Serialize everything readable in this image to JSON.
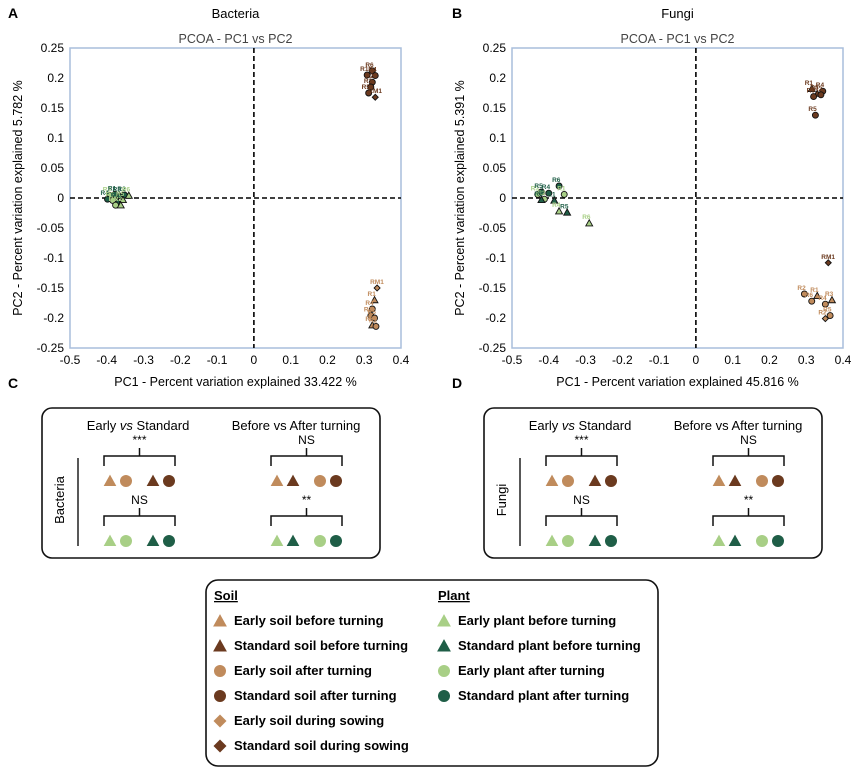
{
  "colors": {
    "early_soil": "#c08b5c",
    "standard_soil": "#6b3a1f",
    "early_plant": "#a8cf86",
    "standard_plant": "#1f5e47",
    "frame": "#a9bedc"
  },
  "chart_data": [
    {
      "panel": "A",
      "type": "scatter",
      "heading": "Bacteria",
      "title": "PCOA - PC1 vs PC2",
      "xlabel": "PC1 - Percent variation explained 33.422 %",
      "ylabel": "PC2 - Percent variation explained 5.782 %",
      "xlim": [
        -0.5,
        0.4
      ],
      "ylim": [
        -0.25,
        0.25
      ],
      "xticks": [
        "-0.5",
        "-0.4",
        "-0.3",
        "-0.2",
        "-0.1",
        "0",
        "0.1",
        "0.2",
        "0.3",
        "0.4"
      ],
      "yticks": [
        "0.25",
        "0.2",
        "0.15",
        "0.1",
        "0.05",
        "0",
        "-0.05",
        "-0.1",
        "-0.15",
        "-0.2",
        "-0.25"
      ],
      "points": [
        {
          "g": "standard_soil_after",
          "x": 0.322,
          "y": 0.212,
          "label": "R6"
        },
        {
          "g": "standard_soil_after",
          "x": 0.308,
          "y": 0.205,
          "label": "R1"
        },
        {
          "g": "standard_soil_after",
          "x": 0.33,
          "y": 0.204,
          "label": "R4"
        },
        {
          "g": "standard_soil_after",
          "x": 0.322,
          "y": 0.193,
          "label": "R2"
        },
        {
          "g": "standard_soil_after",
          "x": 0.318,
          "y": 0.185,
          "label": "R3"
        },
        {
          "g": "standard_soil_after",
          "x": 0.312,
          "y": 0.175,
          "label": "R5"
        },
        {
          "g": "standard_soil_sowing",
          "x": 0.33,
          "y": 0.168,
          "label": "RM1"
        },
        {
          "g": "early_soil_sowing",
          "x": 0.335,
          "y": -0.15,
          "label": "RM1"
        },
        {
          "g": "early_soil_before",
          "x": 0.328,
          "y": -0.17,
          "label": "R1"
        },
        {
          "g": "early_soil_after",
          "x": 0.322,
          "y": -0.185,
          "label": "R4"
        },
        {
          "g": "early_soil_after",
          "x": 0.318,
          "y": -0.196,
          "label": "R3"
        },
        {
          "g": "early_soil_after",
          "x": 0.328,
          "y": -0.2,
          "label": "R5"
        },
        {
          "g": "early_soil_before",
          "x": 0.322,
          "y": -0.212,
          "label": "R6"
        },
        {
          "g": "early_soil_after",
          "x": 0.332,
          "y": -0.214,
          "label": "R2"
        },
        {
          "g": "early_plant_after",
          "x": -0.392,
          "y": 0.004,
          "label": "R3"
        },
        {
          "g": "standard_plant_after",
          "x": -0.378,
          "y": 0.006,
          "label": "R1"
        },
        {
          "g": "standard_plant_before",
          "x": -0.365,
          "y": 0.004,
          "label": "R3"
        },
        {
          "g": "standard_plant_after",
          "x": -0.352,
          "y": 0.005,
          "label": "R2"
        },
        {
          "g": "early_plant_before",
          "x": -0.34,
          "y": 0.004,
          "label": "R6"
        },
        {
          "g": "standard_plant_after",
          "x": -0.398,
          "y": -0.002,
          "label": "R4"
        },
        {
          "g": "early_plant_after",
          "x": -0.384,
          "y": -0.004,
          "label": "R5"
        },
        {
          "g": "standard_plant_before",
          "x": -0.37,
          "y": -0.006,
          "label": "R6"
        },
        {
          "g": "early_plant_before",
          "x": -0.356,
          "y": -0.003,
          "label": "R5"
        },
        {
          "g": "early_plant_after",
          "x": -0.376,
          "y": -0.012,
          "label": "R1"
        },
        {
          "g": "early_plant_before",
          "x": -0.362,
          "y": -0.012,
          "label": "R2"
        }
      ]
    },
    {
      "panel": "B",
      "type": "scatter",
      "heading": "Fungi",
      "title": "PCOA - PC1 vs PC2",
      "xlabel": "PC1 - Percent variation explained 45.816 %",
      "ylabel": "PC2 - Percent variation explained 5.391 %",
      "xlim": [
        -0.5,
        0.4
      ],
      "ylim": [
        -0.25,
        0.25
      ],
      "xticks": [
        "-0.5",
        "-0.4",
        "-0.3",
        "-0.2",
        "-0.1",
        "0",
        "0.1",
        "0.2",
        "0.3",
        "0.4"
      ],
      "yticks": [
        "0.25",
        "0.2",
        "0.15",
        "0.1",
        "0.05",
        "0",
        "-0.05",
        "-0.1",
        "-0.15",
        "-0.2",
        "-0.25"
      ],
      "points": [
        {
          "g": "standard_soil_before",
          "x": 0.315,
          "y": 0.182,
          "label": "R1"
        },
        {
          "g": "standard_soil_after",
          "x": 0.345,
          "y": 0.178,
          "label": "R4"
        },
        {
          "g": "standard_soil_before",
          "x": 0.33,
          "y": 0.174,
          "label": "R3"
        },
        {
          "g": "standard_soil_after",
          "x": 0.32,
          "y": 0.169,
          "label": "R6"
        },
        {
          "g": "standard_soil_after",
          "x": 0.34,
          "y": 0.172,
          "label": "R2"
        },
        {
          "g": "standard_soil_after",
          "x": 0.325,
          "y": 0.138,
          "label": "R5"
        },
        {
          "g": "standard_soil_sowing",
          "x": 0.36,
          "y": -0.108,
          "label": "RM1"
        },
        {
          "g": "early_soil_before",
          "x": 0.33,
          "y": -0.163,
          "label": "R1"
        },
        {
          "g": "early_soil_after",
          "x": 0.295,
          "y": -0.16,
          "label": "R2"
        },
        {
          "g": "early_soil_after",
          "x": 0.315,
          "y": -0.172,
          "label": "R6"
        },
        {
          "g": "early_soil_before",
          "x": 0.37,
          "y": -0.17,
          "label": "R3"
        },
        {
          "g": "early_soil_after",
          "x": 0.352,
          "y": -0.177,
          "label": "R4"
        },
        {
          "g": "early_soil_after",
          "x": 0.365,
          "y": -0.196,
          "label": "R5"
        },
        {
          "g": "early_soil_sowing",
          "x": 0.352,
          "y": -0.201,
          "label": "R2"
        },
        {
          "g": "standard_plant_after",
          "x": -0.372,
          "y": 0.02,
          "label": "R6"
        },
        {
          "g": "early_plant_after",
          "x": -0.43,
          "y": 0.006,
          "label": "R3"
        },
        {
          "g": "standard_plant_after",
          "x": -0.42,
          "y": 0.01,
          "label": "R5"
        },
        {
          "g": "standard_plant_after",
          "x": -0.4,
          "y": 0.008,
          "label": "R4"
        },
        {
          "g": "early_plant_after",
          "x": -0.358,
          "y": 0.006,
          "label": "R1"
        },
        {
          "g": "early_plant_after",
          "x": -0.412,
          "y": -0.002,
          "label": "R2"
        },
        {
          "g": "standard_plant_before",
          "x": -0.385,
          "y": -0.004,
          "label": "R1"
        },
        {
          "g": "standard_plant_before",
          "x": -0.42,
          "y": -0.003,
          "label": "R6"
        },
        {
          "g": "early_plant_before",
          "x": -0.372,
          "y": -0.022,
          "label": "R4"
        },
        {
          "g": "standard_plant_before",
          "x": -0.35,
          "y": -0.024,
          "label": "R5"
        },
        {
          "g": "early_plant_before",
          "x": -0.29,
          "y": -0.042,
          "label": "R6"
        }
      ]
    }
  ],
  "panel_c": {
    "letter": "C",
    "side_label": "Bacteria",
    "cmp1": [
      "Early ",
      "vs",
      " Standard"
    ],
    "cmp2": "Before vs After turning",
    "sig_soil_es": "***",
    "sig_soil_ba": "NS",
    "sig_plant_es": "NS",
    "sig_plant_ba": "**"
  },
  "panel_d": {
    "letter": "D",
    "side_label": "Fungi",
    "cmp1": [
      "Early ",
      "vs",
      " Standard"
    ],
    "cmp2": "Before vs After turning",
    "sig_soil_es": "***",
    "sig_soil_ba": "NS",
    "sig_plant_es": "NS",
    "sig_plant_ba": "**"
  },
  "legend": {
    "soil_header": "Soil",
    "plant_header": "Plant",
    "soil": [
      {
        "key": "early_soil_before",
        "label": "Early soil before turning"
      },
      {
        "key": "standard_soil_before",
        "label": "Standard soil before turning"
      },
      {
        "key": "early_soil_after",
        "label": "Early soil after turning"
      },
      {
        "key": "standard_soil_after",
        "label": "Standard soil after turning"
      },
      {
        "key": "early_soil_sowing",
        "label": "Early soil during sowing"
      },
      {
        "key": "standard_soil_sowing",
        "label": "Standard soil during sowing"
      }
    ],
    "plant": [
      {
        "key": "early_plant_before",
        "label": "Early plant before turning"
      },
      {
        "key": "standard_plant_before",
        "label": "Standard plant before turning"
      },
      {
        "key": "early_plant_after",
        "label": "Early plant after turning"
      },
      {
        "key": "standard_plant_after",
        "label": "Standard plant after turning"
      }
    ]
  }
}
